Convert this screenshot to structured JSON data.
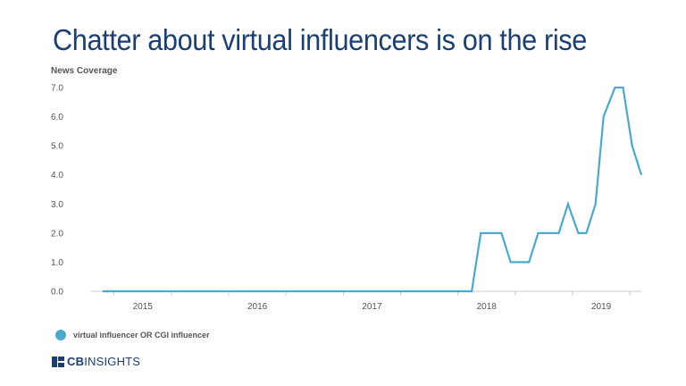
{
  "title": "Chatter about virtual influencers is on the rise",
  "colors": {
    "title": "#1b3f73",
    "series": "#4aa9cf",
    "axis": "#cccccc",
    "text": "#555555"
  },
  "brand": {
    "bold": "CB",
    "rest": "INSIGHTS",
    "icon": "cb-insights-logo-icon"
  },
  "chart_data": {
    "type": "line",
    "title": "Chatter about virtual influencers is on the rise",
    "ylabel": "News Coverage",
    "xlabel": "",
    "ylim": [
      0,
      7
    ],
    "yticks": [
      "0.0",
      "1.0",
      "2.0",
      "3.0",
      "4.0",
      "5.0",
      "6.0",
      "7.0"
    ],
    "xlim": [
      2014.8,
      2019.6
    ],
    "xticks": [
      "2015",
      "2016",
      "2017",
      "2018",
      "2019"
    ],
    "grid": false,
    "legend_position": "bottom-left",
    "series": [
      {
        "name": "virtual influencer OR CGI influencer",
        "x": [
          2014.9,
          2018.12,
          2018.2,
          2018.38,
          2018.46,
          2018.62,
          2018.7,
          2018.88,
          2018.96,
          2019.05,
          2019.12,
          2019.2,
          2019.27,
          2019.37,
          2019.44,
          2019.52,
          2019.6
        ],
        "y": [
          0,
          0,
          2,
          2,
          1,
          1,
          2,
          2,
          3,
          2,
          2,
          3,
          6,
          7,
          7,
          5,
          4
        ]
      }
    ]
  }
}
